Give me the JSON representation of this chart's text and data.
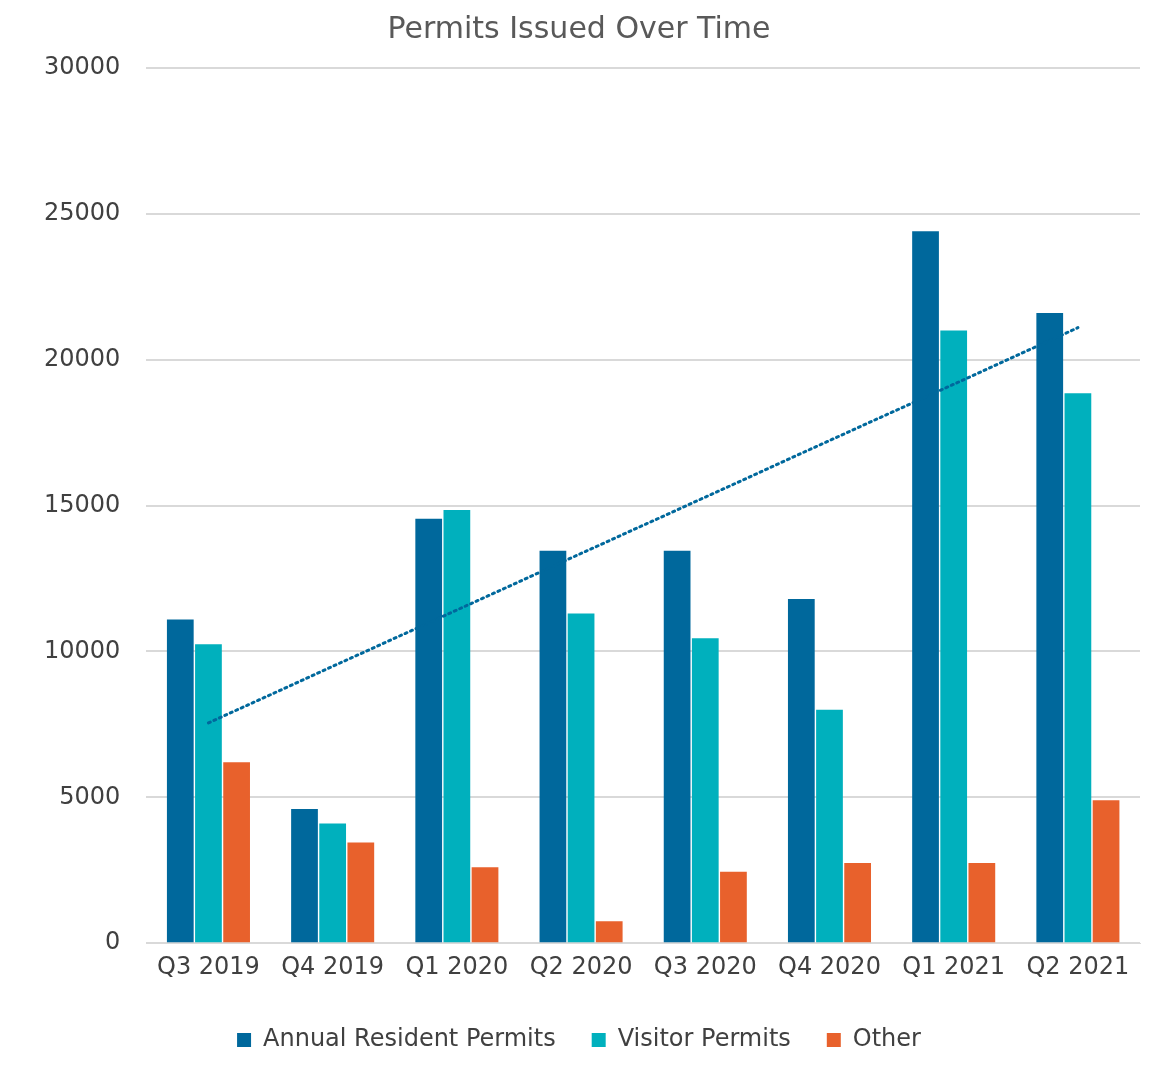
{
  "chart_data": {
    "type": "bar",
    "title": "Permits Issued Over Time",
    "categories": [
      "Q3 2019",
      "Q4 2019",
      "Q1 2020",
      "Q2 2020",
      "Q3 2020",
      "Q4 2020",
      "Q1 2021",
      "Q2 2021"
    ],
    "series": [
      {
        "name": "Annual Resident Permits",
        "color": "#00689c",
        "values": [
          11100,
          4600,
          14550,
          13450,
          13450,
          11800,
          24400,
          21600
        ]
      },
      {
        "name": "Visitor Permits",
        "color": "#00b0bd",
        "values": [
          10250,
          4100,
          14850,
          11300,
          10450,
          8000,
          21000,
          18850
        ]
      },
      {
        "name": "Other",
        "color": "#e8612c",
        "values": [
          6200,
          3450,
          2600,
          750,
          2450,
          2750,
          2750,
          4900
        ]
      },
      {
        "type": "line",
        "color": "#00689c",
        "line_style": "dotted",
        "values": [
          7550,
          9490,
          11420,
          13360,
          15290,
          17230,
          19160,
          21100
        ]
      }
    ],
    "ylim": [
      0,
      30000
    ],
    "yticks": [
      0,
      5000,
      10000,
      15000,
      20000,
      25000,
      30000
    ],
    "grid": "y",
    "legend": "bottom"
  }
}
